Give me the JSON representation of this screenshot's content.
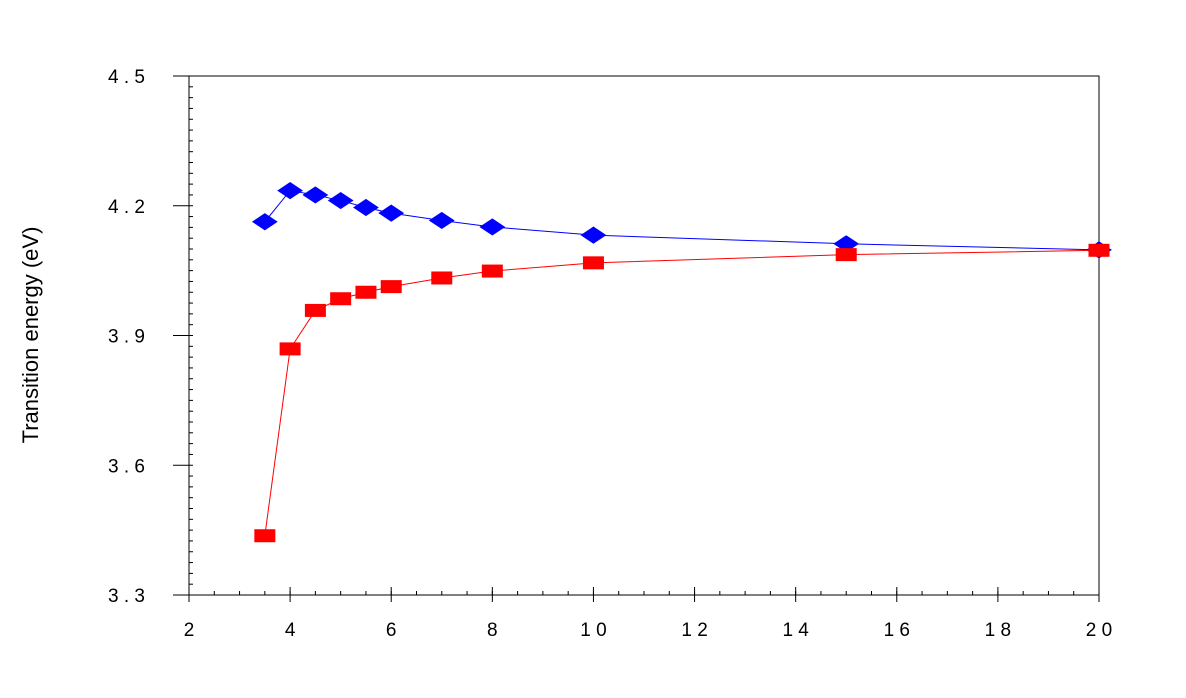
{
  "chart_data": {
    "type": "line",
    "title": "",
    "xlabel": "",
    "ylabel": "Transition energy (eV)",
    "xlim": [
      2,
      20
    ],
    "ylim": [
      3.3,
      4.5
    ],
    "x_ticks": [
      2,
      4,
      6,
      8,
      10,
      12,
      14,
      16,
      18,
      20
    ],
    "x_tick_labels": [
      "2",
      "4",
      "6",
      "8",
      "1 0",
      "1 2",
      "1 4",
      "1 6",
      "1 8",
      "2 0"
    ],
    "y_ticks": [
      3.3,
      3.6,
      3.9,
      4.2,
      4.5
    ],
    "y_tick_labels": [
      "3 . 3",
      "3 . 6",
      "3 . 9",
      "4 . 2",
      "4 . 5"
    ],
    "grid": false,
    "legend": "none",
    "series": [
      {
        "marker": "diamond",
        "color": "#0000ff",
        "points": [
          [
            3.5,
            4.163
          ],
          [
            4,
            4.235
          ],
          [
            4.5,
            4.225
          ],
          [
            5,
            4.212
          ],
          [
            5.5,
            4.196
          ],
          [
            6,
            4.183
          ],
          [
            7,
            4.166
          ],
          [
            8,
            4.151
          ],
          [
            10,
            4.132
          ],
          [
            15,
            4.112
          ],
          [
            20,
            4.098
          ]
        ]
      },
      {
        "marker": "square",
        "color": "#ff0000",
        "points": [
          [
            3.5,
            3.437
          ],
          [
            4,
            3.869
          ],
          [
            4.5,
            3.958
          ],
          [
            5,
            3.985
          ],
          [
            5.5,
            4.0
          ],
          [
            6,
            4.013
          ],
          [
            7,
            4.033
          ],
          [
            8,
            4.049
          ],
          [
            10,
            4.068
          ],
          [
            15,
            4.087
          ],
          [
            20,
            4.097
          ]
        ]
      }
    ]
  }
}
